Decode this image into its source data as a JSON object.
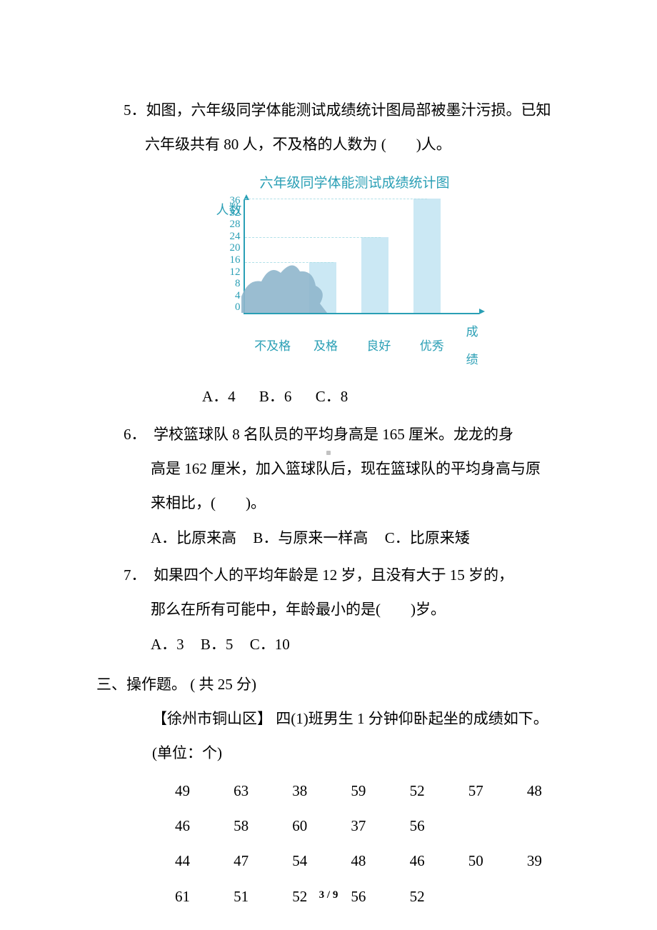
{
  "q5": {
    "line1": "5．如图，六年级同学体能测试成绩统计图局部被墨汁污损。已知",
    "line2": "六年级共有 80 人，不及格的人数为 (　　)人。",
    "chart": {
      "title": "六年级同学体能测试成绩统计图",
      "y_label": "人数",
      "y_ticks": [
        "36",
        "32",
        "28",
        "24",
        "20",
        "16",
        "12",
        "8",
        "4",
        "0"
      ],
      "y_max": 36,
      "x_labels": [
        "不及格",
        "及格",
        "良好",
        "优秀"
      ],
      "x_title": "成绩",
      "values": [
        null,
        16,
        24,
        36
      ],
      "bar_color": "#cbe8f4",
      "axis_color": "#2a9fb5",
      "grid_color": "#b0e0e8",
      "grid_at": [
        36,
        32,
        28,
        24,
        20,
        16
      ],
      "ink_color": "#8fb6cc"
    },
    "optA": "A．4",
    "optB": "B．6",
    "optC": "C．8"
  },
  "q6": {
    "line1": "6．　学校篮球队 8 名队员的平均身高是 165 厘米。龙龙的身",
    "line2": "高是 162 厘米，加入篮球队后，现在篮球队的平均身高与原",
    "line3": "来相比，(　　)。",
    "optA": "A．比原来高",
    "optB": "B．与原来一样高",
    "optC": "C．比原来矮"
  },
  "q7": {
    "line1": "7．　如果四个人的平均年龄是 12 岁，且没有大于 15 岁的，",
    "line2": "那么在所有可能中，年龄最小的是(　　)岁。",
    "optA": "A．3",
    "optB": "B．5",
    "optC": "C．10"
  },
  "section3": {
    "title": "三、操作题。 ( 共 25 分)",
    "body1": "【徐州市铜山区】 四(1)班男生 1 分钟仰卧起坐的成绩如下。",
    "body2": "(单位：个)",
    "rows": [
      [
        "49",
        "63",
        "38",
        "59",
        "52",
        "57",
        "48"
      ],
      [
        "46",
        "58",
        "60",
        "37",
        "56",
        "",
        ""
      ],
      [
        "44",
        "47",
        "54",
        "48",
        "46",
        "50",
        "39"
      ],
      [
        "61",
        "51",
        "52",
        "56",
        "52",
        "",
        ""
      ]
    ]
  },
  "footer": "3 / 9"
}
